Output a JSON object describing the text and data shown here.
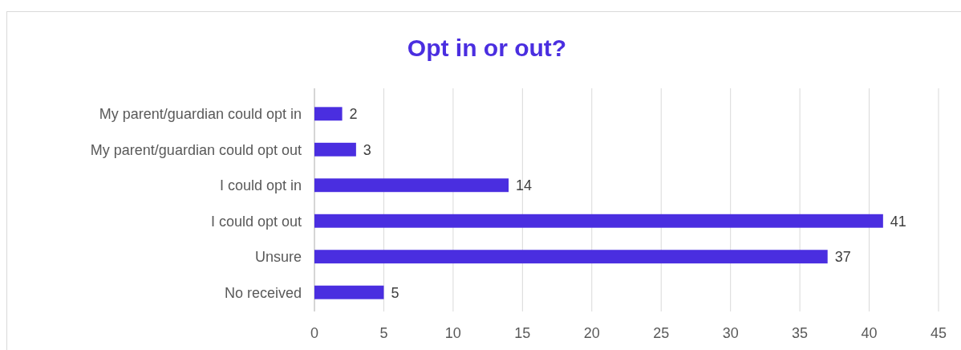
{
  "chart_data": {
    "type": "bar",
    "orientation": "horizontal",
    "title": "Opt in or out?",
    "categories": [
      "My parent/guardian could opt in",
      "My parent/guardian could opt out",
      "I could opt in",
      "I could opt out",
      "Unsure",
      "No received"
    ],
    "values": [
      2,
      3,
      14,
      41,
      37,
      5
    ],
    "color": "#4a2ee0",
    "xlim": [
      0,
      45
    ],
    "xticks": [
      0,
      5,
      10,
      15,
      20,
      25,
      30,
      35,
      40,
      45
    ],
    "grid": "x",
    "data_labels": true
  }
}
